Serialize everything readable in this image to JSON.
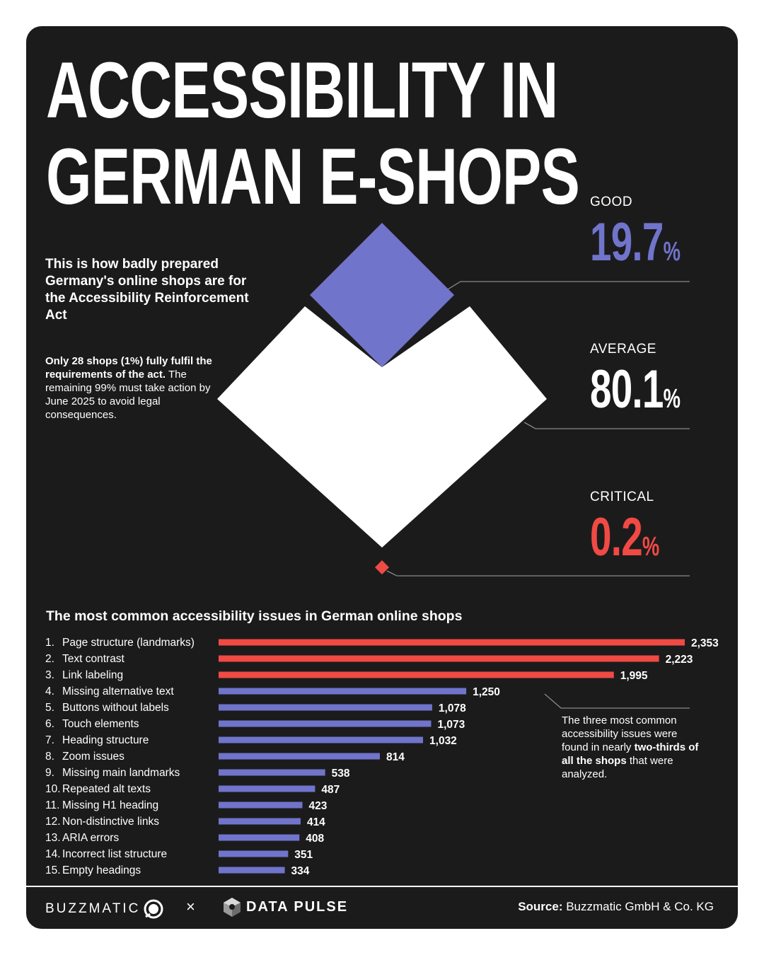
{
  "title": {
    "line1": "ACCESSIBILITY IN",
    "line2": "GERMAN E-SHOPS"
  },
  "subtitle": "This is how badly prepared Germany's online shops are for the Accessibility Reinforcement Act",
  "note": {
    "bold": "Only 28 shops (1%) fully fulfil the requirements of the act.",
    "text": " The remaining 99% must take action by June 2025 to avoid legal consequences."
  },
  "metrics": [
    {
      "label": "GOOD",
      "value": "19.7",
      "unit": "%",
      "color": "#7074cb"
    },
    {
      "label": "AVERAGE",
      "value": "80.1",
      "unit": "%",
      "color": "#ffffff"
    },
    {
      "label": "CRITICAL",
      "value": "0.2",
      "unit": "%",
      "color": "#f04a44"
    }
  ],
  "colors": {
    "accent_red": "#f04a44",
    "accent_purple": "#7074cb",
    "background": "#1c1b1c",
    "white": "#ffffff"
  },
  "chart_data": {
    "type": "bar",
    "orientation": "horizontal",
    "title": "The most common accessibility issues in German online shops",
    "categories": [
      "1.",
      "2.",
      "3.",
      "4.",
      "5.",
      "6.",
      "7.",
      "8.",
      "9.",
      "10.",
      "11.",
      "12.",
      "13.",
      "14.",
      "15."
    ],
    "category_labels": [
      "Page structure (landmarks)",
      "Text contrast",
      "Link labeling",
      "Missing alternative text",
      "Buttons without labels",
      "Touch elements",
      "Heading structure",
      "Zoom issues",
      "Missing main landmarks",
      "Repeated alt texts",
      "Missing H1 heading",
      "Non-distinctive links",
      "ARIA errors",
      "Incorrect list structure",
      "Empty headings"
    ],
    "values": [
      2353,
      2223,
      1995,
      1250,
      1078,
      1073,
      1032,
      814,
      538,
      487,
      423,
      414,
      408,
      351,
      334
    ],
    "value_labels": [
      "2,353",
      "2,223",
      "1,995",
      "1,250",
      "1,078",
      "1,073",
      "1,032",
      "814",
      "538",
      "487",
      "423",
      "414",
      "408",
      "351",
      "334"
    ],
    "highlight_top": 3,
    "highlight_color": "#f04a44",
    "base_color": "#7074cb",
    "xlim": [
      0,
      2353
    ]
  },
  "callout": {
    "pre": "The three most common accessibility issues were found in nearly ",
    "bold": "two-thirds of all the shops",
    "post": " that were analyzed."
  },
  "footer": {
    "brand1": "BUZZMATIC",
    "times": "×",
    "brand2": "DATA PULSE",
    "source_label": "Source:",
    "source_text": " Buzzmatic GmbH & Co. KG"
  }
}
